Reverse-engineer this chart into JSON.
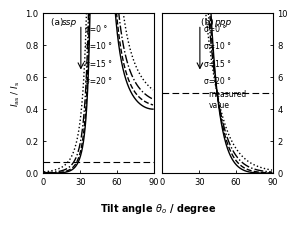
{
  "title_a": "(a) ssp",
  "title_b": "(b) ppp",
  "ylabel": "I_{as} / I_s",
  "xlim": [
    0,
    90
  ],
  "ylim_a": [
    0,
    1.0
  ],
  "ylim_b": [
    0,
    10
  ],
  "yticks_a": [
    0.0,
    0.2,
    0.4,
    0.6,
    0.8,
    1.0
  ],
  "yticks_b": [
    0,
    2,
    4,
    6,
    8,
    10
  ],
  "xticks": [
    0,
    30,
    60,
    90
  ],
  "measured_a": 0.07,
  "measured_b": 5.0,
  "sigma_labels": [
    "σ=0 °",
    "σ=10 °",
    "σ=15 °",
    "σ=20 °"
  ],
  "sigma_values": [
    0,
    10,
    15,
    20
  ],
  "line_styles": [
    "-",
    "--",
    "-.",
    ":"
  ],
  "background": "white",
  "xlabel_bold": "Tilt angle θₒ / degree"
}
